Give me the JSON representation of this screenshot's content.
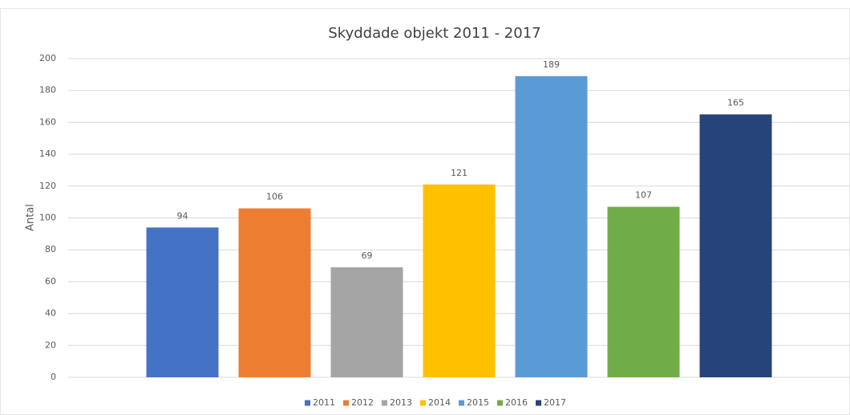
{
  "chart_data": {
    "type": "bar",
    "title": "Skyddade objekt 2011 - 2017",
    "y_label": "Antal",
    "categories": [
      null
    ],
    "series": [
      {
        "name": "2011",
        "color": "#4472c4",
        "values": [
          94
        ]
      },
      {
        "name": "2012",
        "color": "#ed7d31",
        "values": [
          106
        ]
      },
      {
        "name": "2013",
        "color": "#a5a5a5",
        "values": [
          69
        ]
      },
      {
        "name": "2014",
        "color": "#ffc000",
        "values": [
          121
        ]
      },
      {
        "name": "2015",
        "color": "#5b9bd5",
        "values": [
          189
        ]
      },
      {
        "name": "2016",
        "color": "#70ad47",
        "values": [
          107
        ]
      },
      {
        "name": "2017",
        "color": "#264478",
        "values": [
          165
        ]
      }
    ],
    "ylim": [
      0,
      200
    ],
    "yticks": [
      0,
      20,
      40,
      60,
      80,
      100,
      120,
      140,
      160,
      180,
      200
    ],
    "grid": true,
    "legend": "bottom"
  }
}
